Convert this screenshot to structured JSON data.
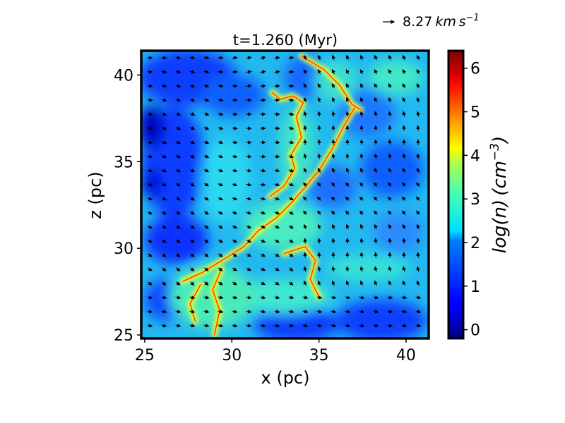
{
  "chart_data": {
    "type": "heatmap",
    "title": "t=1.260 (Myr)",
    "xlabel": "x (pc)",
    "ylabel": "z (pc)",
    "xlim": [
      24.8,
      41.3
    ],
    "ylim": [
      24.8,
      41.4
    ],
    "xticks": [
      "25",
      "30",
      "35",
      "40"
    ],
    "xtick_values": [
      25,
      30,
      35,
      40
    ],
    "yticks": [
      "25",
      "30",
      "35",
      "40"
    ],
    "ytick_values": [
      25,
      30,
      35,
      40
    ],
    "colorbar": {
      "label": "log(n) (cm^-3)",
      "label_parts": {
        "prefix": "log(n) (cm",
        "exponent": "−3",
        "suffix": ")"
      },
      "colormap": "jet",
      "range": [
        -0.2,
        6.4
      ],
      "ticks": [
        "0",
        "1",
        "2",
        "3",
        "4",
        "5",
        "6"
      ],
      "tick_values": [
        0,
        1,
        2,
        3,
        4,
        5,
        6
      ]
    },
    "velocity_reference": {
      "label": "8.27 km s^-1",
      "label_parts": {
        "value": "8.27",
        "unit_main": "km s",
        "exponent": "−1"
      }
    },
    "filaments": [
      {
        "name": "main-diagonal",
        "points": [
          [
            27.2,
            28.1
          ],
          [
            28.3,
            28.6
          ],
          [
            29.6,
            29.4
          ],
          [
            30.7,
            30.1
          ],
          [
            31.5,
            31.0
          ],
          [
            32.6,
            31.8
          ],
          [
            33.4,
            32.6
          ],
          [
            34.1,
            33.4
          ],
          [
            35.0,
            34.5
          ],
          [
            35.8,
            35.8
          ],
          [
            36.4,
            37.0
          ],
          [
            37.1,
            38.2
          ]
        ]
      },
      {
        "name": "upper-branch",
        "points": [
          [
            34.0,
            41.1
          ],
          [
            35.3,
            40.3
          ],
          [
            36.2,
            39.4
          ],
          [
            36.9,
            38.3
          ],
          [
            37.4,
            38.0
          ]
        ]
      },
      {
        "name": "left-loop",
        "points": [
          [
            32.3,
            39.0
          ],
          [
            32.8,
            38.6
          ],
          [
            33.5,
            38.8
          ],
          [
            34.1,
            38.4
          ],
          [
            33.7,
            37.6
          ],
          [
            34.0,
            36.4
          ],
          [
            33.4,
            35.4
          ],
          [
            33.6,
            34.6
          ],
          [
            33.0,
            33.6
          ],
          [
            32.2,
            33.0
          ]
        ]
      },
      {
        "name": "lower-fork",
        "points": [
          [
            29.0,
            25.0
          ],
          [
            29.3,
            26.4
          ],
          [
            28.9,
            27.6
          ],
          [
            29.4,
            28.8
          ]
        ]
      },
      {
        "name": "lower-right",
        "points": [
          [
            33.0,
            29.7
          ],
          [
            34.2,
            30.1
          ],
          [
            34.8,
            29.3
          ],
          [
            34.5,
            28.2
          ],
          [
            35.0,
            27.2
          ]
        ]
      },
      {
        "name": "lower-left",
        "points": [
          [
            27.9,
            25.8
          ],
          [
            27.6,
            26.8
          ],
          [
            28.2,
            27.9
          ]
        ]
      }
    ]
  }
}
